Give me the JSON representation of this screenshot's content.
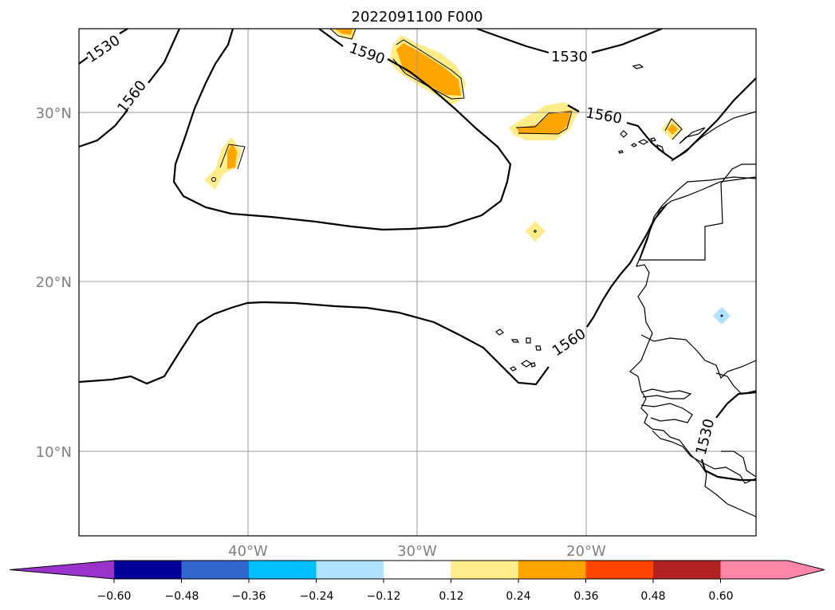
{
  "title": "2022091100 F000",
  "map": {
    "lat_labels": [
      "30°N",
      "20°N",
      "10°N"
    ],
    "lon_labels": [
      "40°W",
      "30°W",
      "20°W"
    ],
    "contour_labels": [
      "1530",
      "1560",
      "1590",
      "1530",
      "1560",
      "1560",
      "1530"
    ],
    "contour_color": "#000000",
    "grid_color": "#999999"
  },
  "colorbar": {
    "colors": [
      "#9933cc",
      "#000099",
      "#3366cc",
      "#00bfff",
      "#b0e2ff",
      "#ffffff",
      "#ffec8b",
      "#ffa500",
      "#ff4500",
      "#b22222",
      "#ff88aa",
      "#ff88aa"
    ],
    "under_color": "#9933cc",
    "over_color": "#ff88aa",
    "tick_labels": [
      "−0.60",
      "−0.48",
      "−0.36",
      "−0.24",
      "−0.12",
      "0.12",
      "0.24",
      "0.36",
      "0.48",
      "0.60"
    ]
  }
}
